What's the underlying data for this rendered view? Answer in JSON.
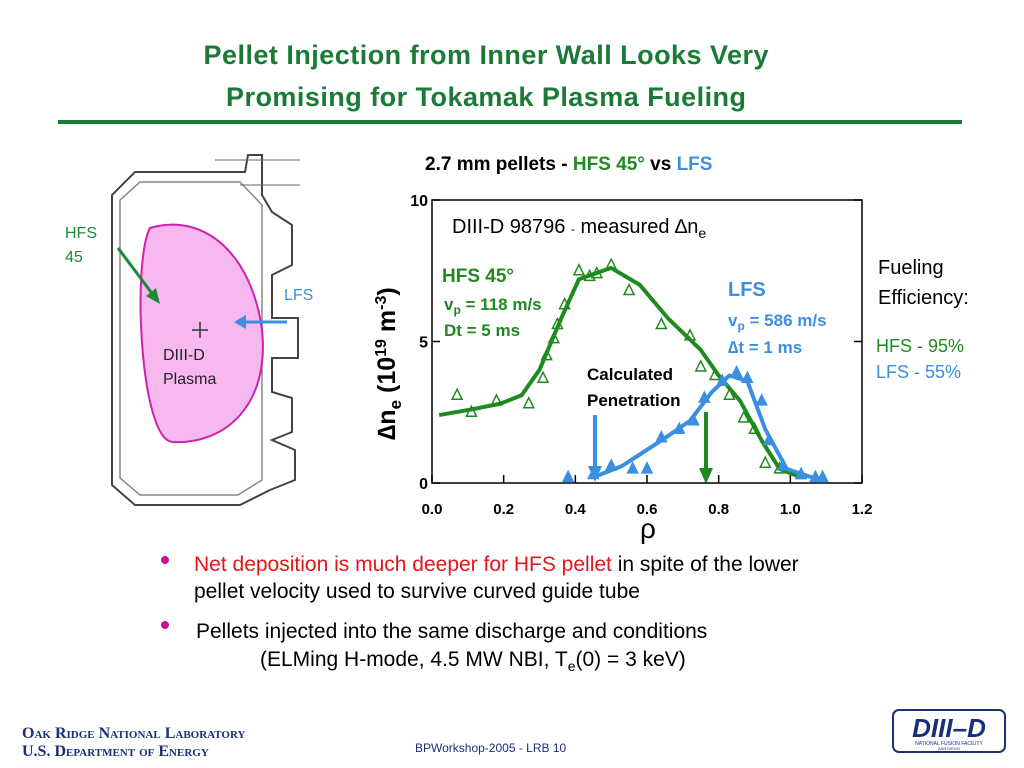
{
  "title": [
    "Pellet Injection from Inner Wall Looks Very",
    "Promising for Tokamak Plasma Fueling"
  ],
  "diagram": {
    "hfs": "HFS",
    "angle": "45",
    "lfs": "LFS",
    "machine": "DIII-D",
    "plasma": "Plasma"
  },
  "chart_data": {
    "type": "line",
    "title": [
      "2.7 mm pellets  -  ",
      "HFS 45°",
      " vs ",
      "LFS"
    ],
    "xlabel": "ρ",
    "ylabel": [
      "∆n",
      "e",
      " (10",
      "19",
      " m",
      "-3",
      ")"
    ],
    "xlim": [
      0,
      1.2
    ],
    "xticks": [
      {
        "value": 0,
        "label": "0.0"
      },
      {
        "value": 0.2,
        "label": "0.2"
      },
      {
        "value": 0.4,
        "label": "0.4"
      },
      {
        "value": 0.6,
        "label": "0.6"
      },
      {
        "value": 0.8,
        "label": "0.8"
      },
      {
        "value": 1.0,
        "label": "1.0"
      },
      {
        "value": 1.2,
        "label": "1.2"
      }
    ],
    "ylim": [
      0,
      10
    ],
    "yticks": [
      0,
      5,
      10
    ],
    "annotation": [
      "DIII-D 98796",
      "-",
      "measured ∆n",
      "e"
    ],
    "penetration": [
      "Calculated",
      "Penetration"
    ],
    "series": [
      {
        "name": "HFS 45°",
        "color": "#1f8a1f",
        "details": [
          [
            "v",
            "p",
            " = 118 m/s"
          ],
          [
            "Dt = 5 ms"
          ]
        ],
        "x": [
          0.02,
          0.11,
          0.19,
          0.25,
          0.3,
          0.36,
          0.41,
          0.5,
          0.58,
          0.66,
          0.75,
          0.8,
          0.86,
          0.92,
          0.97,
          1.03
        ],
        "values": [
          2.4,
          2.6,
          2.8,
          3.1,
          4.0,
          5.8,
          7.2,
          7.6,
          7.0,
          5.8,
          4.7,
          3.8,
          2.9,
          1.5,
          0.5,
          0.2
        ],
        "points_x": [
          0.07,
          0.11,
          0.18,
          0.27,
          0.31,
          0.32,
          0.34,
          0.35,
          0.37,
          0.41,
          0.44,
          0.46,
          0.5,
          0.55,
          0.64,
          0.72,
          0.75,
          0.79,
          0.83,
          0.87,
          0.9,
          0.93,
          0.97,
          1.03
        ],
        "points_values": [
          3.1,
          2.5,
          2.9,
          2.8,
          3.7,
          4.5,
          5.1,
          5.6,
          6.3,
          7.5,
          7.3,
          7.4,
          7.7,
          6.8,
          5.6,
          5.2,
          4.1,
          3.8,
          3.1,
          2.3,
          1.9,
          0.7,
          0.5,
          0.3
        ]
      },
      {
        "name": "LFS",
        "color": "#3a8fe0",
        "details": [
          [
            "v",
            "p",
            " = 586 m/s"
          ],
          [
            "∆t = 1 ms"
          ]
        ],
        "x": [
          0.45,
          0.53,
          0.64,
          0.72,
          0.78,
          0.83,
          0.88,
          0.93,
          0.99,
          1.06
        ],
        "values": [
          0.2,
          0.6,
          1.5,
          2.2,
          3.2,
          3.8,
          3.6,
          1.9,
          0.5,
          0.2
        ],
        "points_x": [
          0.38,
          0.45,
          0.5,
          0.56,
          0.6,
          0.64,
          0.69,
          0.73,
          0.76,
          0.81,
          0.85,
          0.88,
          0.92,
          0.94,
          0.98,
          1.03,
          1.07,
          1.09
        ],
        "points_values": [
          0.2,
          0.3,
          0.6,
          0.5,
          0.5,
          1.6,
          1.9,
          2.2,
          3.0,
          3.6,
          3.9,
          3.7,
          2.9,
          1.5,
          0.6,
          0.3,
          0.2,
          0.2
        ]
      }
    ]
  },
  "efficiency": {
    "heading": [
      "Fueling",
      "Efficiency:"
    ],
    "hfs": "HFS - 95%",
    "lfs": "LFS - 55%"
  },
  "bullets": [
    {
      "highlight": "Net deposition is much deeper for HFS pellet",
      "lines": [
        " in spite of the lower",
        "pellet velocity used to survive curved guide tube"
      ]
    },
    {
      "lines": [
        "Pellets injected into the same discharge and conditions",
        "(ELMing H-mode, 4.5 MW NBI, T",
        "e",
        "(0) = 3 keV)"
      ]
    }
  ],
  "footer": {
    "lab": "Oak Ridge National Laboratory",
    "dept": "U.S. Department of Energy",
    "event": "BPWorkshop-2005  - LRB",
    "page": "10",
    "logo": [
      "DIII–D",
      "NATIONAL FUSION FACILITY",
      "SAN DIEGO"
    ]
  }
}
